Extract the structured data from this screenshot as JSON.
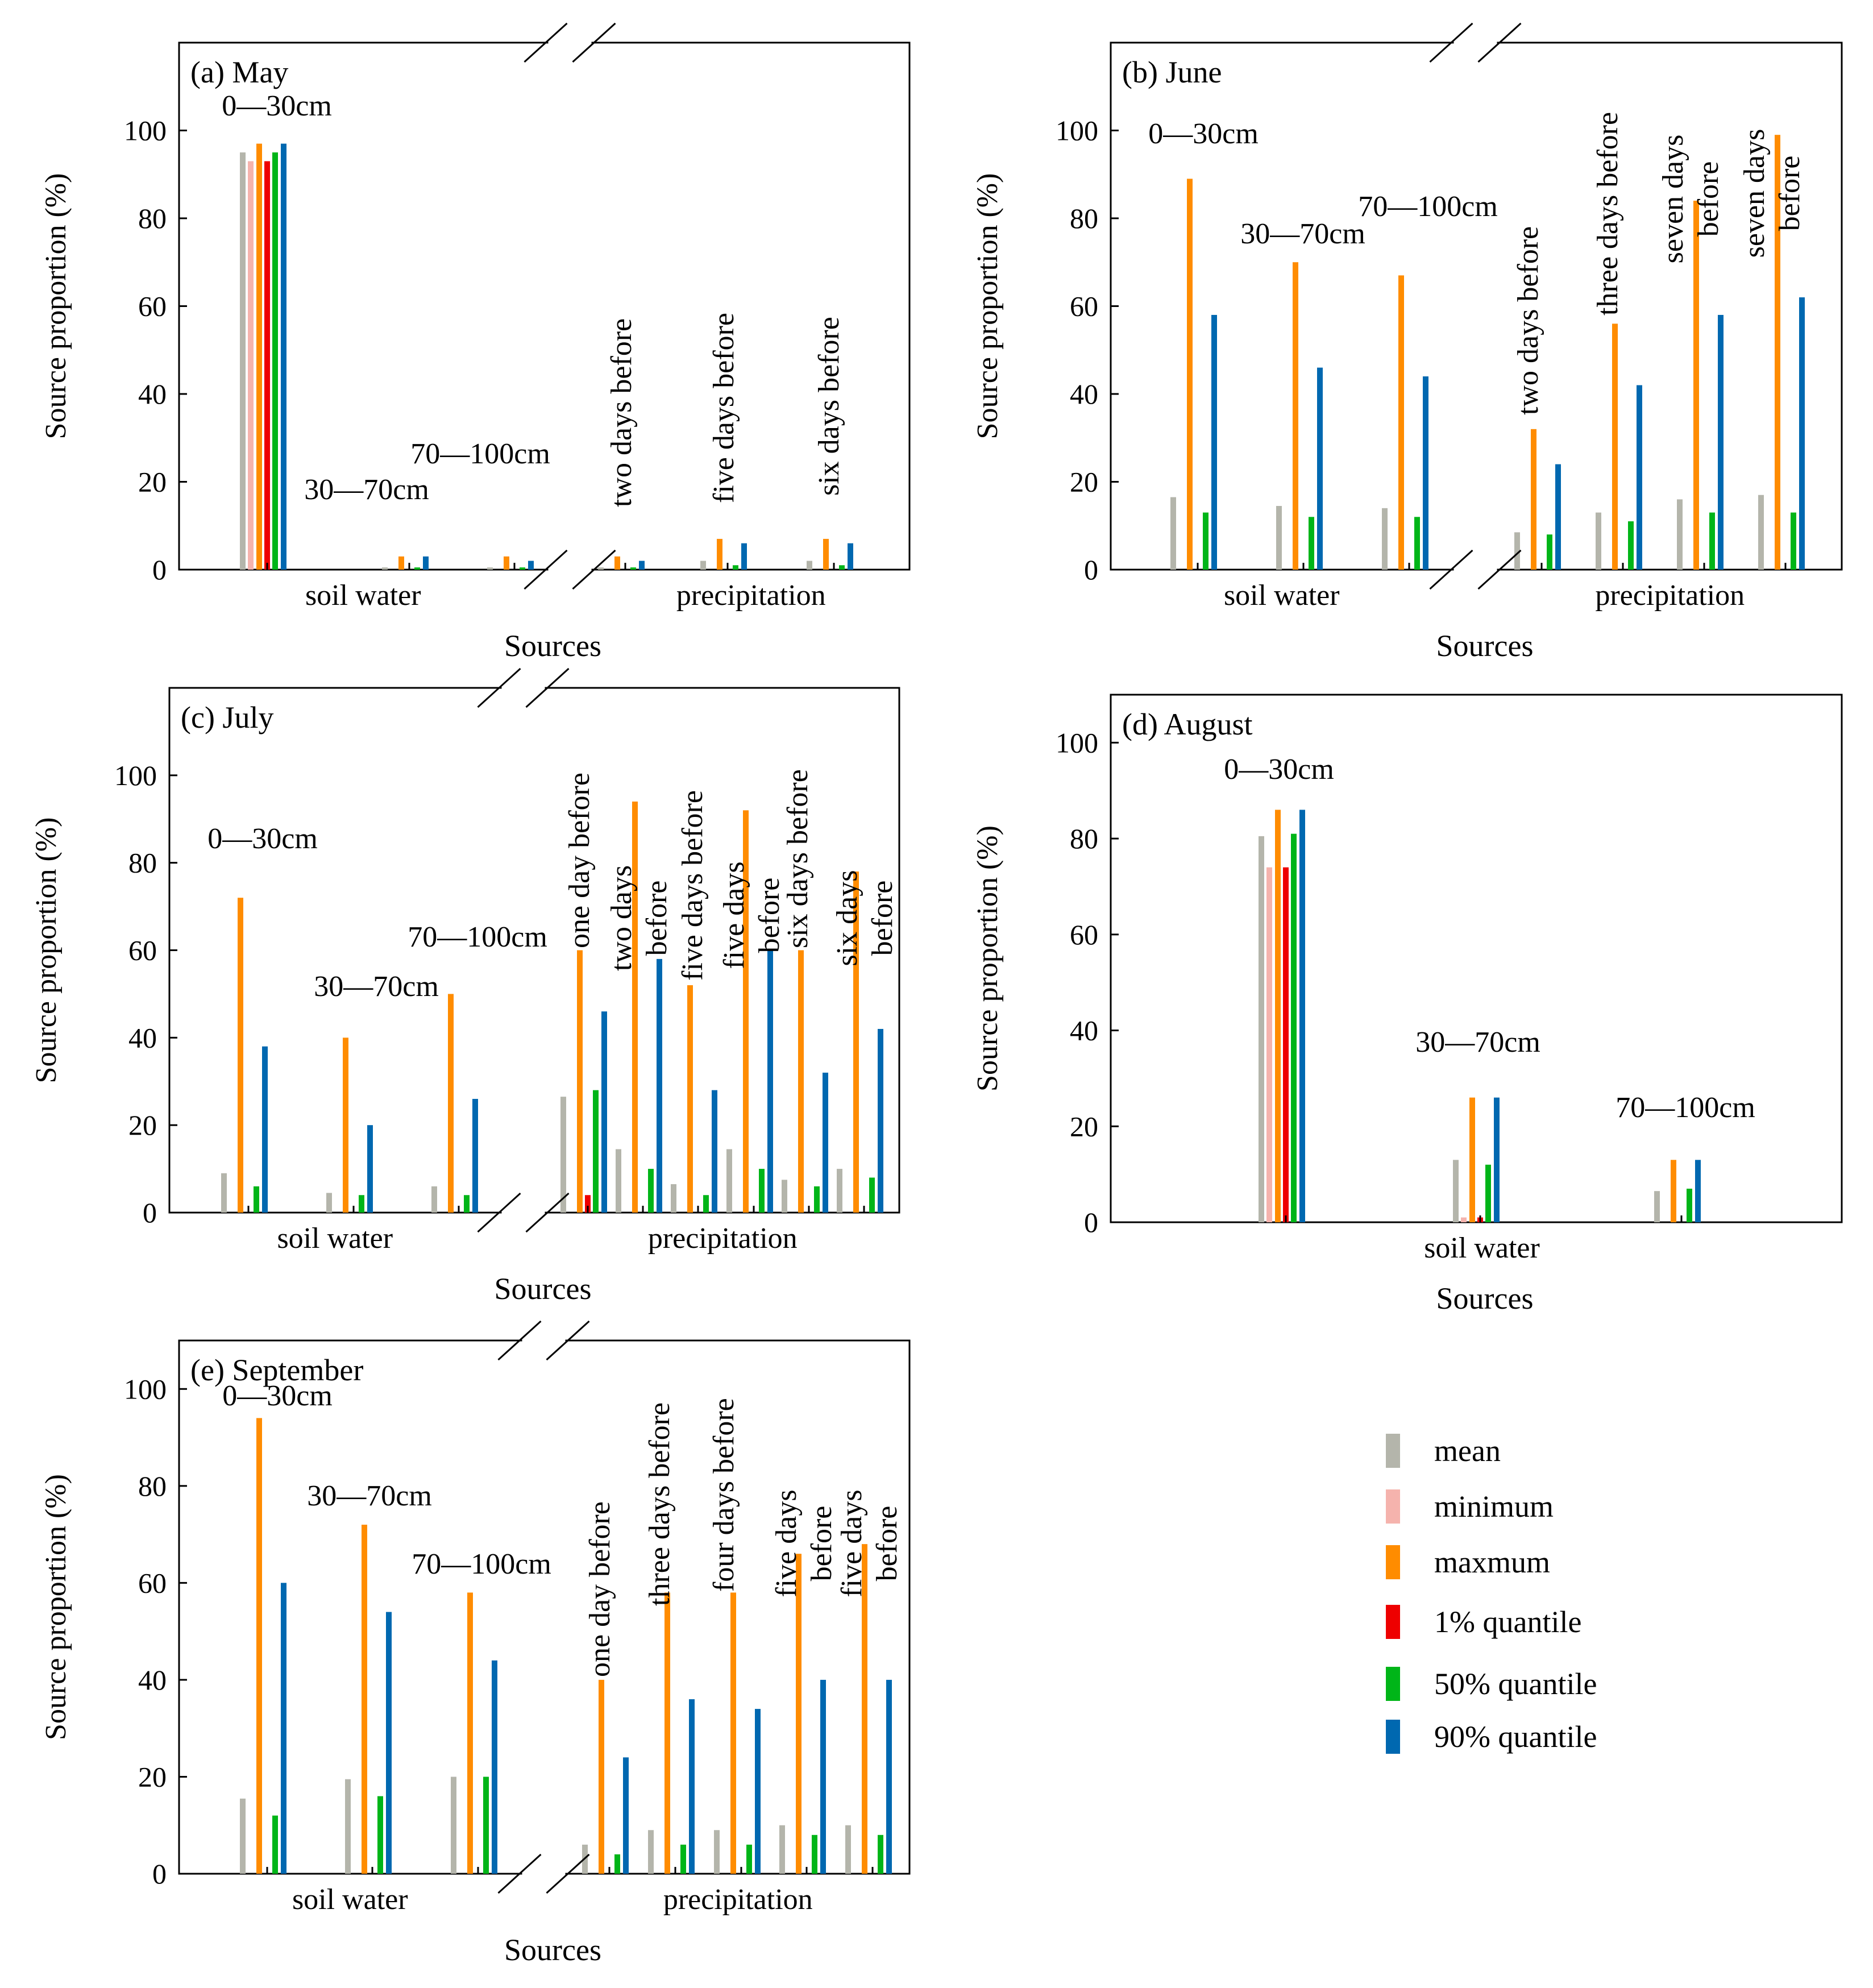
{
  "figure": {
    "legend": {
      "placement": "bottom-right"
    }
  },
  "series_colors": {
    "mean": "#b4b5ab",
    "minimum": "#f5b3ad",
    "maxmum": "#ff8c00",
    "1% quantile": "#ee0000",
    "50% quantile": "#00b518",
    "90% quantile": "#0068b0"
  },
  "chart_data": [
    {
      "type": "bar",
      "title": "(a) May",
      "xlabel": "Sources",
      "ylabel": "Source proportion (%)",
      "ylim": [
        0,
        120
      ],
      "yticks": [
        0,
        20,
        40,
        60,
        80,
        100
      ],
      "axis_break": true,
      "groups": [
        {
          "label": "soil water",
          "categories": [
            "0—30cm",
            "30—70cm",
            "70—100cm"
          ]
        },
        {
          "label": "precipitation",
          "categories": [
            "two days before",
            "five days before",
            "six days before"
          ]
        }
      ],
      "series": [
        {
          "name": "mean",
          "values": [
            95,
            0.5,
            0.5,
            0.5,
            2,
            2
          ]
        },
        {
          "name": "minimum",
          "values": [
            93,
            0,
            0,
            0,
            0,
            0
          ]
        },
        {
          "name": "maxmum",
          "values": [
            97,
            3,
            3,
            3,
            7,
            7
          ]
        },
        {
          "name": "1% quantile",
          "values": [
            93,
            0,
            0,
            0,
            0,
            0
          ]
        },
        {
          "name": "50% quantile",
          "values": [
            95,
            0.5,
            0.5,
            0.5,
            1,
            1
          ]
        },
        {
          "name": "90% quantile",
          "values": [
            97,
            3,
            2,
            2,
            6,
            6
          ]
        }
      ]
    },
    {
      "type": "bar",
      "title": "(b) June",
      "xlabel": "Sources",
      "ylabel": "Source proportion (%)",
      "ylim": [
        0,
        120
      ],
      "yticks": [
        0,
        20,
        40,
        60,
        80,
        100
      ],
      "axis_break": true,
      "groups": [
        {
          "label": "soil water",
          "categories": [
            "0—30cm",
            "30—70cm",
            "70—100cm"
          ]
        },
        {
          "label": "precipitation",
          "categories": [
            "two days before",
            "three days before",
            "seven days before",
            "seven days before"
          ]
        }
      ],
      "series": [
        {
          "name": "mean",
          "values": [
            16.5,
            14.5,
            14,
            8.5,
            13,
            16,
            17
          ]
        },
        {
          "name": "minimum",
          "values": [
            0,
            0,
            0,
            0,
            0,
            0,
            0
          ]
        },
        {
          "name": "maxmum",
          "values": [
            89,
            70,
            67,
            32,
            56,
            84,
            99
          ]
        },
        {
          "name": "1% quantile",
          "values": [
            0,
            0,
            0,
            0,
            0,
            0,
            0
          ]
        },
        {
          "name": "50% quantile",
          "values": [
            13,
            12,
            12,
            8,
            11,
            13,
            13
          ]
        },
        {
          "name": "90% quantile",
          "values": [
            58,
            46,
            44,
            24,
            42,
            58,
            62
          ]
        }
      ]
    },
    {
      "type": "bar",
      "title": "(c) July",
      "xlabel": "Sources",
      "ylabel": "Source proportion (%)",
      "ylim": [
        0,
        120
      ],
      "yticks": [
        0,
        20,
        40,
        60,
        80,
        100
      ],
      "axis_break": true,
      "groups": [
        {
          "label": "soil water",
          "categories": [
            "0—30cm",
            "30—70cm",
            "70—100cm"
          ]
        },
        {
          "label": "precipitation",
          "categories": [
            "one day before",
            "two days before",
            "five days before",
            "five days before",
            "six days before",
            "six days before"
          ]
        }
      ],
      "series": [
        {
          "name": "mean",
          "values": [
            9,
            4.5,
            6,
            26.5,
            14.5,
            6.5,
            14.5,
            7.5,
            10
          ]
        },
        {
          "name": "minimum",
          "values": [
            0,
            0,
            0,
            0,
            0,
            0,
            0,
            0,
            0
          ]
        },
        {
          "name": "maxmum",
          "values": [
            72,
            40,
            50,
            60,
            94,
            52,
            92,
            60,
            78
          ]
        },
        {
          "name": "1% quantile",
          "values": [
            0,
            0,
            0,
            4,
            0,
            0,
            0,
            0,
            0
          ]
        },
        {
          "name": "50% quantile",
          "values": [
            6,
            4,
            4,
            28,
            10,
            4,
            10,
            6,
            8
          ]
        },
        {
          "name": "90% quantile",
          "values": [
            38,
            20,
            26,
            46,
            58,
            28,
            60,
            32,
            42
          ]
        }
      ]
    },
    {
      "type": "bar",
      "title": "(d) August",
      "xlabel": "Sources",
      "ylabel": "Source proportion (%)",
      "ylim": [
        0,
        110
      ],
      "yticks": [
        0,
        20,
        40,
        60,
        80,
        100
      ],
      "axis_break": false,
      "groups": [
        {
          "label": "soil water",
          "categories": [
            "0—30cm",
            "30—70cm",
            "70—100cm"
          ]
        }
      ],
      "series": [
        {
          "name": "mean",
          "values": [
            80.5,
            13,
            6.5
          ]
        },
        {
          "name": "minimum",
          "values": [
            74,
            1,
            0
          ]
        },
        {
          "name": "maxmum",
          "values": [
            86,
            26,
            13
          ]
        },
        {
          "name": "1% quantile",
          "values": [
            74,
            1,
            0
          ]
        },
        {
          "name": "50% quantile",
          "values": [
            81,
            12,
            7
          ]
        },
        {
          "name": "90% quantile",
          "values": [
            86,
            26,
            13
          ]
        }
      ]
    },
    {
      "type": "bar",
      "title": "(e) September",
      "xlabel": "Sources",
      "ylabel": "Source proportion (%)",
      "ylim": [
        0,
        110
      ],
      "yticks": [
        0,
        20,
        40,
        60,
        80,
        100
      ],
      "axis_break": true,
      "groups": [
        {
          "label": "soil water",
          "categories": [
            "0—30cm",
            "30—70cm",
            "70—100cm"
          ]
        },
        {
          "label": "precipitation",
          "categories": [
            "one day before",
            "three days before",
            "four days before",
            "five days before",
            "five days before"
          ]
        }
      ],
      "series": [
        {
          "name": "mean",
          "values": [
            15.5,
            19.5,
            20,
            6,
            9,
            9,
            10,
            10
          ]
        },
        {
          "name": "minimum",
          "values": [
            0,
            0,
            0,
            0,
            0,
            0,
            0,
            0
          ]
        },
        {
          "name": "maxmum",
          "values": [
            94,
            72,
            58,
            40,
            58,
            58,
            66,
            68
          ]
        },
        {
          "name": "1% quantile",
          "values": [
            0,
            0,
            0,
            0,
            0,
            0,
            0,
            0
          ]
        },
        {
          "name": "50% quantile",
          "values": [
            12,
            16,
            20,
            4,
            6,
            6,
            8,
            8
          ]
        },
        {
          "name": "90% quantile",
          "values": [
            60,
            54,
            44,
            24,
            36,
            34,
            40,
            40
          ]
        }
      ]
    }
  ]
}
